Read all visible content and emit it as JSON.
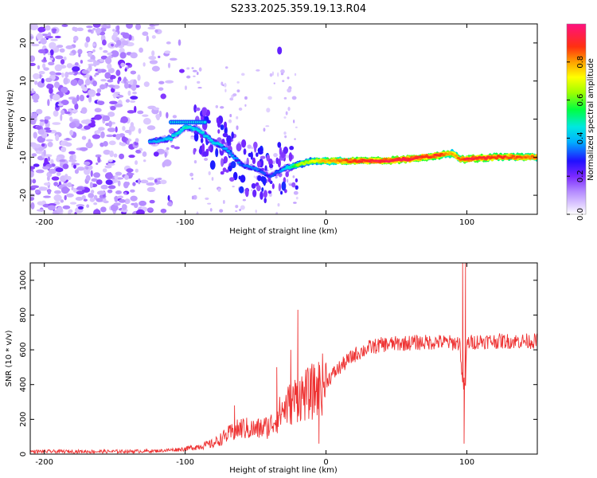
{
  "title": "S233.2025.359.19.13.R04",
  "chart_data": [
    {
      "type": "heatmap",
      "name": "spectrogram",
      "xlabel": "Height of straight line (km)",
      "ylabel": "Frequency (Hz)",
      "xlim": [
        -210,
        150
      ],
      "ylim": [
        -25,
        25
      ],
      "xticks": [
        -200,
        -100,
        0,
        100
      ],
      "yticks": [
        -20,
        -10,
        0,
        10,
        20
      ],
      "colorbar": {
        "label": "Normalized spectral amplitude",
        "range": [
          0,
          1
        ],
        "ticks": [
          0.0,
          0.2,
          0.4,
          0.6,
          0.8
        ],
        "tick_labels": [
          "0.0",
          "0.2",
          "0.4",
          "0.6",
          "0.8"
        ]
      },
      "signal_track": {
        "x": [
          -125,
          -110,
          -100,
          -90,
          -80,
          -70,
          -60,
          -50,
          -40,
          -30,
          -20,
          -10,
          0,
          10,
          20,
          40,
          60,
          80,
          90,
          95,
          100,
          120,
          150
        ],
        "freq": [
          -6,
          -5,
          -2,
          -3,
          -6,
          -8,
          -12,
          -13,
          -15,
          -13,
          -12,
          -11,
          -11,
          -11,
          -11,
          -11,
          -10.5,
          -9.5,
          -9,
          -10.5,
          -10.5,
          -10,
          -10
        ],
        "amplitude": [
          0.3,
          0.35,
          0.4,
          0.35,
          0.35,
          0.3,
          0.25,
          0.25,
          0.2,
          0.3,
          0.55,
          0.6,
          0.7,
          0.75,
          0.8,
          0.85,
          0.85,
          0.8,
          0.7,
          0.75,
          0.85,
          0.8,
          0.75
        ]
      }
    },
    {
      "type": "line",
      "name": "snr",
      "xlabel": "Height of straight line (km)",
      "ylabel": "SNR (10 * v/v)",
      "xlim": [
        -210,
        150
      ],
      "ylim": [
        0,
        1100
      ],
      "xticks": [
        -200,
        -100,
        0,
        100
      ],
      "yticks": [
        0,
        200,
        400,
        600,
        800,
        1000
      ],
      "color": "#ee3333",
      "envelope": {
        "x": [
          -210,
          -150,
          -120,
          -100,
          -80,
          -70,
          -60,
          -50,
          -40,
          -30,
          -20,
          -10,
          0,
          10,
          20,
          30,
          40,
          60,
          80,
          90,
          95,
          97,
          99,
          100,
          110,
          150
        ],
        "y": [
          15,
          15,
          18,
          30,
          60,
          110,
          150,
          140,
          160,
          260,
          330,
          350,
          420,
          500,
          570,
          610,
          630,
          640,
          645,
          640,
          640,
          400,
          400,
          640,
          650,
          650
        ]
      },
      "spikes": {
        "x": [
          -65,
          -35,
          -25,
          -20,
          -10,
          -5,
          97,
          98,
          99
        ],
        "y": [
          280,
          500,
          600,
          830,
          520,
          60,
          1100,
          60,
          1100
        ]
      }
    }
  ]
}
